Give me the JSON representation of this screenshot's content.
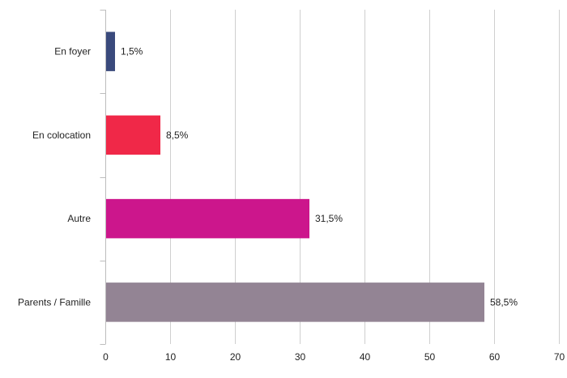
{
  "chart_data": {
    "type": "bar",
    "orientation": "horizontal",
    "categories": [
      "En foyer",
      "En colocation",
      "Autre",
      "Parents / Famille"
    ],
    "values": [
      1.5,
      8.5,
      31.5,
      58.5
    ],
    "value_labels": [
      "1,5%",
      "8,5%",
      "31,5%",
      "58,5%"
    ],
    "colors": [
      "#3a4a7c",
      "#f02848",
      "#cc168c",
      "#938494"
    ],
    "xlim": [
      0,
      70
    ],
    "xticks": [
      0,
      10,
      20,
      30,
      40,
      50,
      60,
      70
    ],
    "title": "",
    "xlabel": "",
    "ylabel": "",
    "grid": "vertical",
    "legend": "none"
  }
}
